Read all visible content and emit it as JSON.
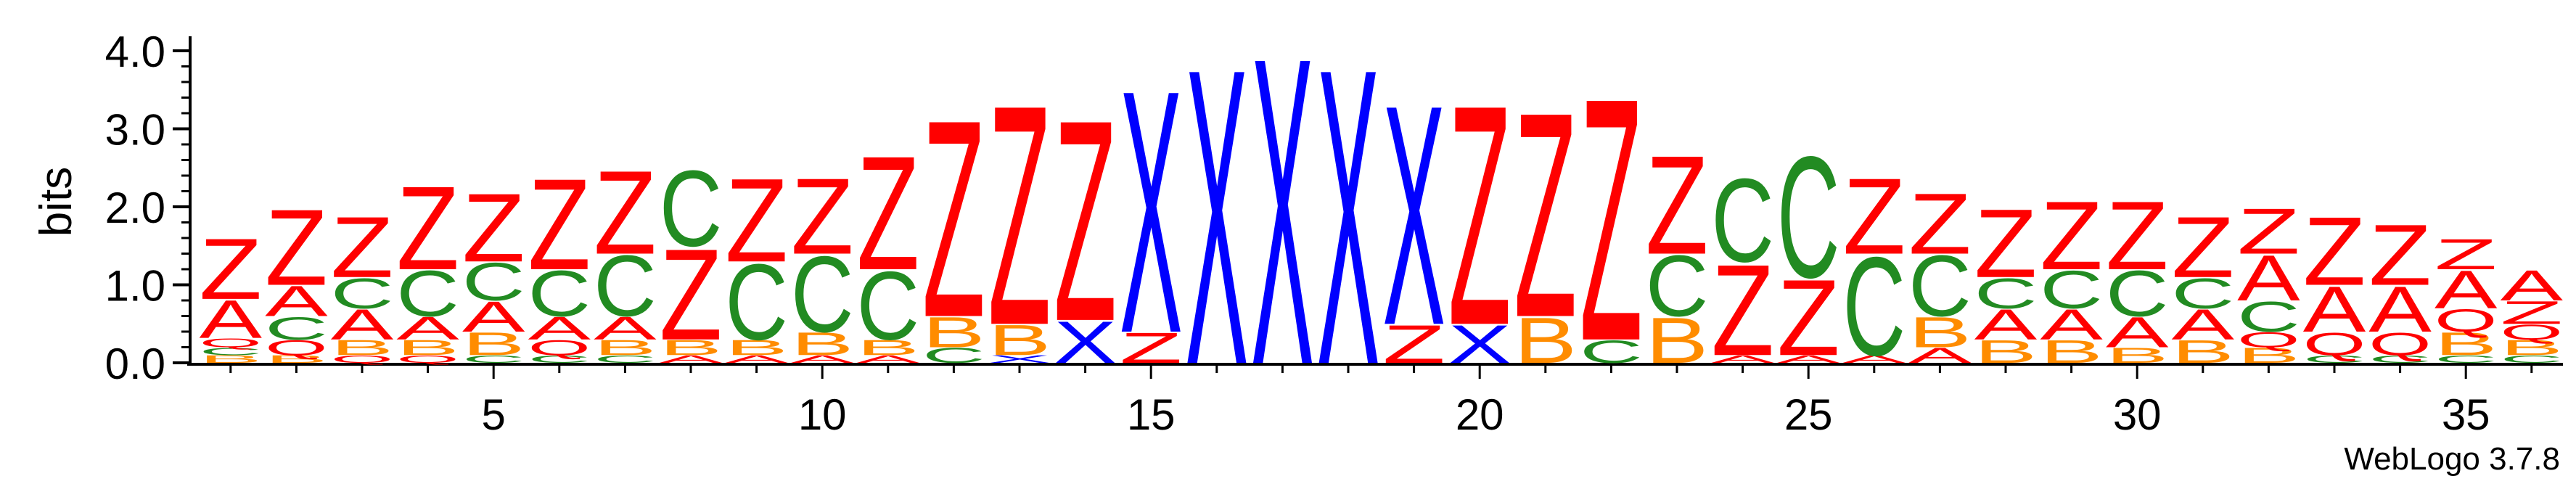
{
  "chart_data": {
    "type": "sequence-logo",
    "title": "",
    "ylabel": "bits",
    "xlabel": "",
    "ylim": [
      0,
      4.0
    ],
    "yticks": [
      "0.0",
      "1.0",
      "2.0",
      "3.0",
      "4.0"
    ],
    "xticks": [
      "5",
      "10",
      "15",
      "20",
      "25",
      "30",
      "35"
    ],
    "xtick_positions": [
      5,
      10,
      15,
      20,
      25,
      30,
      35
    ],
    "credit": "WebLogo 3.7.8",
    "colors": {
      "Z": "#ff0000",
      "X": "#0000ff",
      "C": "#228b22",
      "A": "#ff0000",
      "B": "#ff8c00",
      "Q": "#ff0000"
    },
    "positions": [
      {
        "pos": 1,
        "stack": [
          [
            "B",
            0.1
          ],
          [
            "C",
            0.1
          ],
          [
            "Q",
            0.12
          ],
          [
            "A",
            0.5
          ],
          [
            "Z",
            0.8
          ]
        ]
      },
      {
        "pos": 2,
        "stack": [
          [
            "B",
            0.1
          ],
          [
            "Q",
            0.2
          ],
          [
            "C",
            0.3
          ],
          [
            "A",
            0.4
          ],
          [
            "Z",
            1.0
          ]
        ]
      },
      {
        "pos": 3,
        "stack": [
          [
            "Q",
            0.1
          ],
          [
            "B",
            0.2
          ],
          [
            "A",
            0.4
          ],
          [
            "C",
            0.4
          ],
          [
            "Z",
            0.8
          ]
        ]
      },
      {
        "pos": 4,
        "stack": [
          [
            "Q",
            0.1
          ],
          [
            "B",
            0.2
          ],
          [
            "A",
            0.3
          ],
          [
            "C",
            0.6
          ],
          [
            "Z",
            1.1
          ]
        ]
      },
      {
        "pos": 5,
        "stack": [
          [
            "C",
            0.1
          ],
          [
            "B",
            0.3
          ],
          [
            "A",
            0.4
          ],
          [
            "C",
            0.5
          ],
          [
            "Z",
            0.9
          ]
        ]
      },
      {
        "pos": 6,
        "stack": [
          [
            "C",
            0.1
          ],
          [
            "Q",
            0.2
          ],
          [
            "A",
            0.3
          ],
          [
            "C",
            0.6
          ],
          [
            "Z",
            1.2
          ]
        ]
      },
      {
        "pos": 7,
        "stack": [
          [
            "C",
            0.1
          ],
          [
            "B",
            0.2
          ],
          [
            "A",
            0.3
          ],
          [
            "C",
            0.8
          ],
          [
            "Z",
            1.1
          ]
        ]
      },
      {
        "pos": 8,
        "stack": [
          [
            "A",
            0.1
          ],
          [
            "B",
            0.2
          ],
          [
            "Z",
            1.2
          ],
          [
            "C",
            1.0
          ]
        ]
      },
      {
        "pos": 9,
        "stack": [
          [
            "A",
            0.1
          ],
          [
            "B",
            0.2
          ],
          [
            "C",
            1.0
          ],
          [
            "Z",
            1.1
          ]
        ]
      },
      {
        "pos": 10,
        "stack": [
          [
            "A",
            0.1
          ],
          [
            "B",
            0.3
          ],
          [
            "C",
            1.0
          ],
          [
            "Z",
            1.0
          ]
        ]
      },
      {
        "pos": 11,
        "stack": [
          [
            "A",
            0.1
          ],
          [
            "B",
            0.2
          ],
          [
            "C",
            0.9
          ],
          [
            "Z",
            1.5
          ]
        ]
      },
      {
        "pos": 12,
        "stack": [
          [
            "C",
            0.2
          ],
          [
            "B",
            0.4
          ],
          [
            "Z",
            2.6
          ]
        ]
      },
      {
        "pos": 13,
        "stack": [
          [
            "X",
            0.1
          ],
          [
            "B",
            0.4
          ],
          [
            "Z",
            2.9
          ]
        ]
      },
      {
        "pos": 14,
        "stack": [
          [
            "X",
            0.55
          ],
          [
            "Z",
            2.65
          ]
        ]
      },
      {
        "pos": 15,
        "stack": [
          [
            "Z",
            0.4
          ],
          [
            "X",
            3.2
          ]
        ]
      },
      {
        "pos": 16,
        "stack": [
          [
            "X",
            3.9
          ]
        ]
      },
      {
        "pos": 17,
        "stack": [
          [
            "X",
            4.05
          ]
        ]
      },
      {
        "pos": 18,
        "stack": [
          [
            "X",
            3.9
          ]
        ]
      },
      {
        "pos": 19,
        "stack": [
          [
            "Z",
            0.5
          ],
          [
            "X",
            2.9
          ]
        ]
      },
      {
        "pos": 20,
        "stack": [
          [
            "X",
            0.5
          ],
          [
            "Z",
            2.9
          ]
        ]
      },
      {
        "pos": 21,
        "stack": [
          [
            "B",
            0.6
          ],
          [
            "Z",
            2.7
          ]
        ]
      },
      {
        "pos": 22,
        "stack": [
          [
            "C",
            0.3
          ],
          [
            "Z",
            3.2
          ]
        ]
      },
      {
        "pos": 23,
        "stack": [
          [
            "B",
            0.6
          ],
          [
            "C",
            0.8
          ],
          [
            "Z",
            1.3
          ]
        ]
      },
      {
        "pos": 24,
        "stack": [
          [
            "A",
            0.1
          ],
          [
            "Z",
            1.2
          ],
          [
            "C",
            1.1
          ]
        ]
      },
      {
        "pos": 25,
        "stack": [
          [
            "A",
            0.1
          ],
          [
            "Z",
            1.0
          ],
          [
            "C",
            1.6
          ]
        ]
      },
      {
        "pos": 26,
        "stack": [
          [
            "A",
            0.1
          ],
          [
            "C",
            1.3
          ],
          [
            "Z",
            1.0
          ]
        ]
      },
      {
        "pos": 27,
        "stack": [
          [
            "A",
            0.2
          ],
          [
            "B",
            0.4
          ],
          [
            "C",
            0.8
          ],
          [
            "Z",
            0.8
          ]
        ]
      },
      {
        "pos": 28,
        "stack": [
          [
            "B",
            0.3
          ],
          [
            "A",
            0.4
          ],
          [
            "C",
            0.4
          ],
          [
            "Z",
            0.9
          ]
        ]
      },
      {
        "pos": 29,
        "stack": [
          [
            "B",
            0.3
          ],
          [
            "A",
            0.4
          ],
          [
            "C",
            0.5
          ],
          [
            "Z",
            0.9
          ]
        ]
      },
      {
        "pos": 30,
        "stack": [
          [
            "B",
            0.2
          ],
          [
            "A",
            0.4
          ],
          [
            "C",
            0.6
          ],
          [
            "Z",
            0.9
          ]
        ]
      },
      {
        "pos": 31,
        "stack": [
          [
            "B",
            0.3
          ],
          [
            "A",
            0.4
          ],
          [
            "C",
            0.4
          ],
          [
            "Z",
            0.8
          ]
        ]
      },
      {
        "pos": 32,
        "stack": [
          [
            "B",
            0.2
          ],
          [
            "Q",
            0.2
          ],
          [
            "C",
            0.4
          ],
          [
            "A",
            0.6
          ],
          [
            "Z",
            0.6
          ]
        ]
      },
      {
        "pos": 33,
        "stack": [
          [
            "C",
            0.1
          ],
          [
            "Q",
            0.3
          ],
          [
            "A",
            0.6
          ],
          [
            "Z",
            0.9
          ]
        ]
      },
      {
        "pos": 34,
        "stack": [
          [
            "C",
            0.1
          ],
          [
            "Q",
            0.3
          ],
          [
            "A",
            0.6
          ],
          [
            "Z",
            0.8
          ]
        ]
      },
      {
        "pos": 35,
        "stack": [
          [
            "C",
            0.1
          ],
          [
            "B",
            0.3
          ],
          [
            "Q",
            0.3
          ],
          [
            "A",
            0.5
          ],
          [
            "Z",
            0.4
          ]
        ]
      },
      {
        "pos": 36,
        "stack": [
          [
            "C",
            0.1
          ],
          [
            "B",
            0.2
          ],
          [
            "Q",
            0.2
          ],
          [
            "Z",
            0.3
          ],
          [
            "A",
            0.4
          ]
        ]
      }
    ]
  }
}
